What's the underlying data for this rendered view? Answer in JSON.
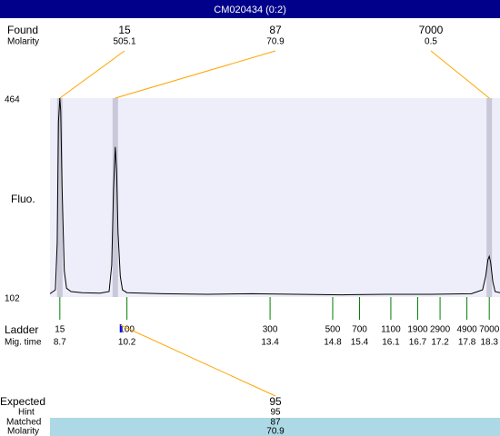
{
  "chart_data": {
    "type": "line",
    "title": "CM020434 (0:2)",
    "ylabel": "Fluo.",
    "ylim": [
      102,
      464
    ],
    "yticks": [
      102,
      464
    ],
    "xlim": [
      8.48,
      18.54
    ],
    "x": [
      8.48,
      8.6,
      8.64,
      8.67,
      8.7,
      8.72,
      8.75,
      8.8,
      8.85,
      8.95,
      9.2,
      9.6,
      9.8,
      9.86,
      9.9,
      9.94,
      9.97,
      10.0,
      10.05,
      10.1,
      10.2,
      11,
      12,
      13,
      14,
      15,
      16,
      17,
      17.9,
      18.15,
      18.22,
      18.27,
      18.3,
      18.33,
      18.38,
      18.43,
      18.54
    ],
    "values": [
      108,
      115,
      200,
      420,
      464,
      440,
      300,
      150,
      118,
      112,
      110,
      109,
      112,
      160,
      300,
      375,
      330,
      220,
      140,
      115,
      110,
      108,
      107,
      108,
      107,
      106,
      107,
      107,
      108,
      115,
      140,
      170,
      176,
      165,
      130,
      112,
      110
    ],
    "color": "#000000",
    "found": {
      "label": "Found",
      "molarity_label": "Molarity",
      "peaks": [
        {
          "size": 15,
          "molarity": 505.1,
          "time": 8.7
        },
        {
          "size": 87,
          "molarity": 70.9,
          "time": 9.94
        },
        {
          "size": 7000,
          "molarity": 0.5,
          "time": 18.3
        }
      ]
    },
    "ladder": {
      "label": "Ladder",
      "time_label": "Mig. time",
      "sizes": [
        15,
        100,
        300,
        500,
        700,
        1100,
        1900,
        2900,
        4900,
        7000
      ],
      "times": [
        8.7,
        10.2,
        13.4,
        14.8,
        15.4,
        16.1,
        16.7,
        17.2,
        17.8,
        18.3
      ]
    },
    "expected": {
      "label": "Expected",
      "value": 95,
      "time": 10.06,
      "hint_label": "Hint",
      "hint": 95,
      "matched_label": "Matched",
      "matched": 87,
      "molarity_label": "Molarity",
      "molarity": 70.9
    }
  }
}
